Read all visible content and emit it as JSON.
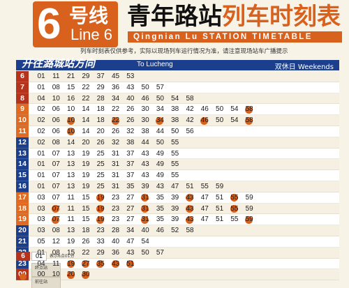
{
  "header": {
    "line_number": "6",
    "line_cn": "号线",
    "line_en": "Line 6",
    "title_station": "青年路站",
    "title_timetable": "列车时刻表",
    "title_en": "Qingnian Lu STATION TIMETABLE",
    "notice": "列车时刻表仅供参考，实际以现场列车运行情况为准，请注意现场站车广播提示"
  },
  "direction": {
    "label_cn": "开往潞城站方向",
    "label_en": "To Lucheng",
    "day_type": "双休日 Weekends"
  },
  "colors": {
    "brand_orange": "#d8611e",
    "direction_blue": "#1c3f8d",
    "hour_red": "#b5321c",
    "hour_orange": "#e06a22",
    "hour_blue": "#1c3f8d",
    "short_turn_circle": "#d8611e"
  },
  "timetable": [
    {
      "hour": "6",
      "hour_color": "#b5321c",
      "minutes": [
        "01",
        "11",
        "21",
        "29",
        "37",
        "45",
        "53"
      ],
      "short": []
    },
    {
      "hour": "7",
      "hour_color": "#b5321c",
      "minutes": [
        "01",
        "08",
        "15",
        "22",
        "29",
        "36",
        "43",
        "50",
        "57"
      ],
      "short": []
    },
    {
      "hour": "8",
      "hour_color": "#b5321c",
      "minutes": [
        "04",
        "10",
        "16",
        "22",
        "28",
        "34",
        "40",
        "46",
        "50",
        "54",
        "58"
      ],
      "short": []
    },
    {
      "hour": "9",
      "hour_color": "#e06a22",
      "minutes": [
        "02",
        "06",
        "10",
        "14",
        "18",
        "22",
        "26",
        "30",
        "34",
        "38",
        "42",
        "46",
        "50",
        "54",
        "58"
      ],
      "short": [
        14
      ]
    },
    {
      "hour": "10",
      "hour_color": "#e06a22",
      "minutes": [
        "02",
        "06",
        "10",
        "14",
        "18",
        "22",
        "26",
        "30",
        "34",
        "38",
        "42",
        "46",
        "50",
        "54",
        "58"
      ],
      "short": [
        2,
        5,
        8,
        11,
        14
      ]
    },
    {
      "hour": "11",
      "hour_color": "#e06a22",
      "minutes": [
        "02",
        "06",
        "10",
        "14",
        "20",
        "26",
        "32",
        "38",
        "44",
        "50",
        "56"
      ],
      "short": [
        2
      ]
    },
    {
      "hour": "12",
      "hour_color": "#1c3f8d",
      "minutes": [
        "02",
        "08",
        "14",
        "20",
        "26",
        "32",
        "38",
        "44",
        "50",
        "55"
      ],
      "short": []
    },
    {
      "hour": "13",
      "hour_color": "#1c3f8d",
      "minutes": [
        "01",
        "07",
        "13",
        "19",
        "25",
        "31",
        "37",
        "43",
        "49",
        "55"
      ],
      "short": []
    },
    {
      "hour": "14",
      "hour_color": "#1c3f8d",
      "minutes": [
        "01",
        "07",
        "13",
        "19",
        "25",
        "31",
        "37",
        "43",
        "49",
        "55"
      ],
      "short": []
    },
    {
      "hour": "15",
      "hour_color": "#1c3f8d",
      "minutes": [
        "01",
        "07",
        "13",
        "19",
        "25",
        "31",
        "37",
        "43",
        "49",
        "55"
      ],
      "short": []
    },
    {
      "hour": "16",
      "hour_color": "#1c3f8d",
      "minutes": [
        "01",
        "07",
        "13",
        "19",
        "25",
        "31",
        "35",
        "39",
        "43",
        "47",
        "51",
        "55",
        "59"
      ],
      "short": []
    },
    {
      "hour": "17",
      "hour_color": "#e06a22",
      "minutes": [
        "03",
        "07",
        "11",
        "15",
        "19",
        "23",
        "27",
        "31",
        "35",
        "39",
        "43",
        "47",
        "51",
        "55",
        "59"
      ],
      "short": [
        4,
        7,
        10,
        13
      ]
    },
    {
      "hour": "18",
      "hour_color": "#e06a22",
      "minutes": [
        "03",
        "07",
        "11",
        "15",
        "19",
        "23",
        "27",
        "31",
        "35",
        "39",
        "43",
        "47",
        "51",
        "55",
        "59"
      ],
      "short": [
        1,
        4,
        7,
        10,
        13
      ]
    },
    {
      "hour": "19",
      "hour_color": "#e06a22",
      "minutes": [
        "03",
        "07",
        "11",
        "15",
        "19",
        "23",
        "27",
        "31",
        "35",
        "39",
        "43",
        "47",
        "51",
        "55",
        "59"
      ],
      "short": [
        1,
        4,
        7,
        10,
        14
      ]
    },
    {
      "hour": "20",
      "hour_color": "#1c3f8d",
      "minutes": [
        "03",
        "08",
        "13",
        "18",
        "23",
        "28",
        "34",
        "40",
        "46",
        "52",
        "58"
      ],
      "short": []
    },
    {
      "hour": "21",
      "hour_color": "#1c3f8d",
      "minutes": [
        "05",
        "12",
        "19",
        "26",
        "33",
        "40",
        "47",
        "54"
      ],
      "short": []
    },
    {
      "hour": "22",
      "hour_color": "#1c3f8d",
      "minutes": [
        "01",
        "08",
        "15",
        "22",
        "29",
        "36",
        "43",
        "50",
        "57"
      ],
      "short": []
    },
    {
      "hour": "23",
      "hour_color": "#1c3f8d",
      "minutes": [
        "04",
        "11",
        "19",
        "27",
        "35",
        "43",
        "51"
      ],
      "short": [
        2,
        3,
        4,
        5,
        6
      ]
    },
    {
      "hour": "00",
      "hour_color": "#b5321c",
      "minutes": [
        "00",
        "10",
        "20",
        "30"
      ],
      "short": [
        0,
        1,
        2,
        3
      ]
    }
  ],
  "legend": {
    "hour_example": "6",
    "minute_example": "01",
    "example_text": "表示6点01分",
    "box1_text": "终点站",
    "box2_text": "前往站"
  }
}
